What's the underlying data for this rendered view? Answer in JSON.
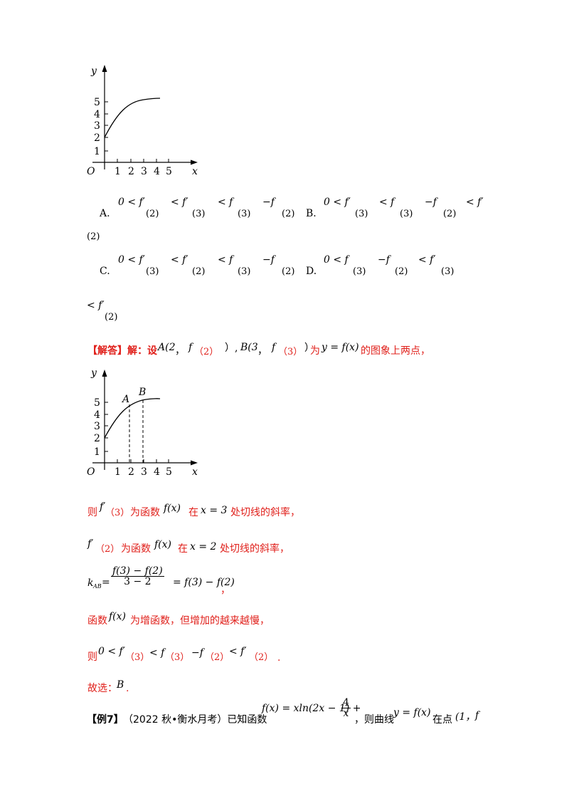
{
  "graph1": {
    "y_label": "y",
    "x_label": "x",
    "origin": "O",
    "y_ticks": [
      "1",
      "2",
      "3",
      "4",
      "5"
    ],
    "x_ticks": [
      "1",
      "2",
      "3",
      "4",
      "5"
    ]
  },
  "options": {
    "A_letter": "A.",
    "A_items": [
      "0 < f′",
      "(2)",
      "< f′",
      "(3)",
      "< f",
      "(3)",
      "−f",
      "(2)"
    ],
    "B_letter": "B.",
    "B_items": [
      "0 < f′",
      "(3)",
      "< f",
      "(3)",
      "−f",
      "(2)",
      "< f′"
    ],
    "B_cont": "(2)",
    "C_letter": "C.",
    "C_items": [
      "0 < f′",
      "(3)",
      "< f′",
      "(2)",
      "< f",
      "(3)",
      "−f",
      "(2)"
    ],
    "D_letter": "D.",
    "D_items": [
      "0 < f",
      "(3)",
      "−f",
      "(2)",
      "< f′",
      "(3)"
    ],
    "D_cont_f": "< f′",
    "D_cont_arg": "(2)"
  },
  "solution": {
    "header": "【解答】解：设",
    "pA": "A(2",
    "comma1": "，",
    "fA": "f",
    "argA": "（2）",
    "close1": "）,",
    "pB": "B(3",
    "comma2": "，",
    "fB": "f",
    "argB": "（3）",
    "close2": "）",
    "wei": "为",
    "eq": "y = f(x)",
    "tail": "的图象上两点，"
  },
  "graph2": {
    "y_label": "y",
    "x_label": "x",
    "origin": "O",
    "point_a": "A",
    "point_b": "B",
    "y_ticks": [
      "1",
      "2",
      "3",
      "4",
      "5"
    ],
    "x_ticks": [
      "1",
      "2",
      "3",
      "4",
      "5"
    ]
  },
  "lines": {
    "l1_a": "则",
    "l1_f": "f′",
    "l1_arg": "（3）",
    "l1_b": "为函数",
    "l1_fx": "f(x)",
    "l1_c": "在",
    "l1_eq": "x = 3",
    "l1_d": "处切线的斜率，",
    "l2_f": "f′",
    "l2_arg": "（2）",
    "l2_b": "为函数",
    "l2_fx": "f(x)",
    "l2_c": "在",
    "l2_eq": "x = 2",
    "l2_d": "处切线的斜率，",
    "kab": "k",
    "kab_sub": "AB",
    "kab_num": "f(3) − f(2)",
    "kab_den": "3 − 2",
    "kab_rhs": "= f(3) − f(2)",
    "kab_end": "，",
    "l4_a": "函数",
    "l4_fx": "f(x)",
    "l4_b": "为增函数，但增加的越来越慢，",
    "l5_a": "则",
    "l5_b": "0 < f′",
    "l5_c": "（3）",
    "l5_d": "< f",
    "l5_e": "（3）",
    "l5_f": "−f",
    "l5_g": "（2）",
    "l5_h": "< f′",
    "l5_i": "（2）",
    "l5_j": ".",
    "l6_a": "故选：",
    "l6_b": "B",
    "l6_c": "."
  },
  "example": {
    "tag": "【例7】",
    "source": "（2022 秋•衡水月考）已知函数",
    "fx": "f(x) = xln(2x − 1) +",
    "frac_num": "4",
    "frac_den": "x",
    "mid": "，则曲线",
    "curve": "y = f(x)",
    "at": "在点",
    "pt": "(1，",
    "f": "f"
  }
}
